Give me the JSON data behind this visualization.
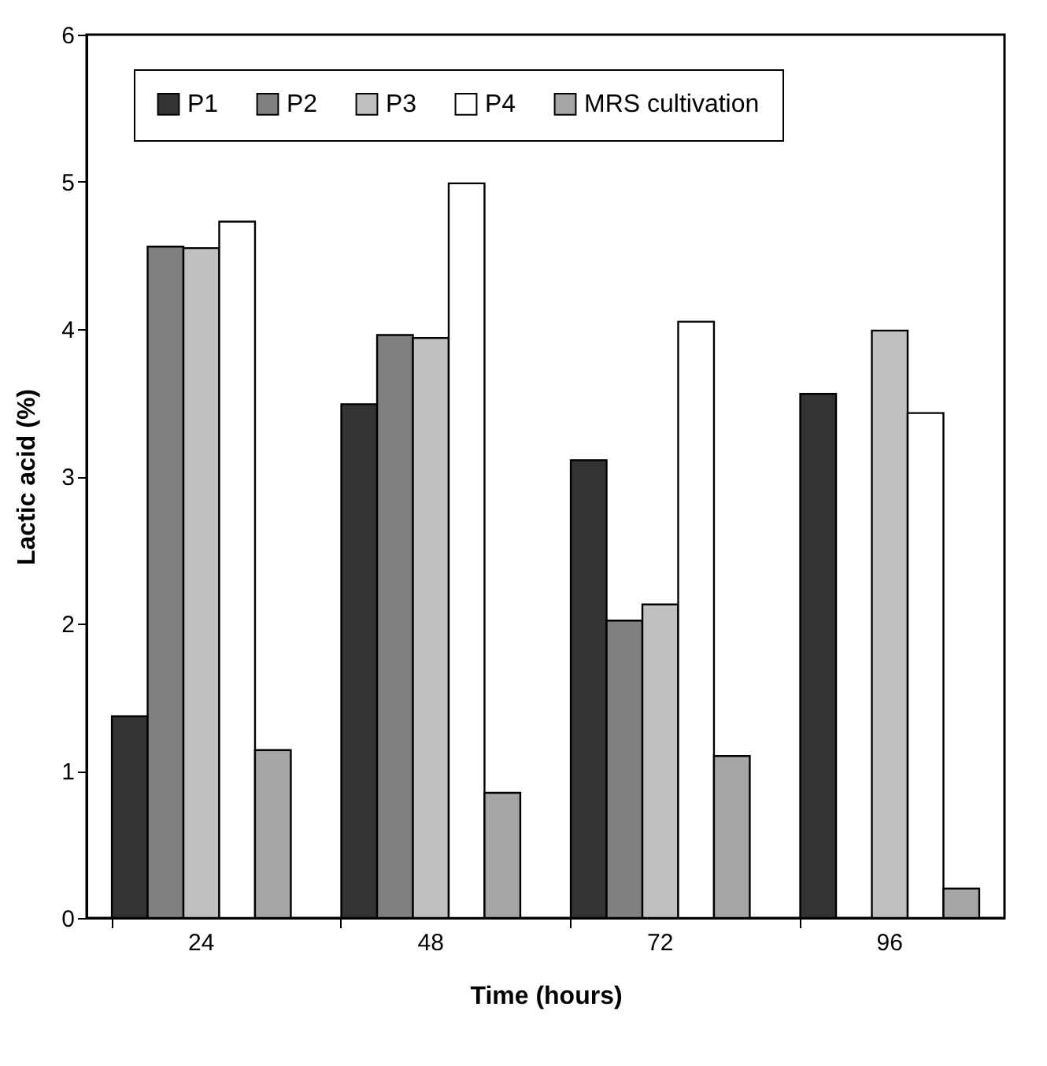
{
  "chart_data": {
    "type": "bar",
    "xlabel": "Time (hours)",
    "ylabel": "Lactic acid (%)",
    "categories": [
      "24",
      "48",
      "72",
      "96"
    ],
    "series": [
      {
        "name": "P1",
        "color": "#333333",
        "values": [
          1.37,
          3.49,
          3.11,
          3.56
        ]
      },
      {
        "name": "P2",
        "color": "#808080",
        "values": [
          4.56,
          3.96,
          2.02,
          null
        ]
      },
      {
        "name": "P3",
        "color": "#c0c0c0",
        "values": [
          4.55,
          3.94,
          2.13,
          3.99
        ]
      },
      {
        "name": "P4",
        "color": "#ffffff",
        "values": [
          4.73,
          4.99,
          4.05,
          3.43
        ]
      },
      {
        "name": "MRS cultivation",
        "color": "#a6a6a6",
        "values": [
          1.14,
          0.85,
          1.1,
          0.2
        ]
      }
    ],
    "ylim": [
      0,
      6
    ],
    "yticks": [
      0,
      1,
      2,
      3,
      4,
      5,
      6
    ],
    "grid": false,
    "legend": "top"
  }
}
